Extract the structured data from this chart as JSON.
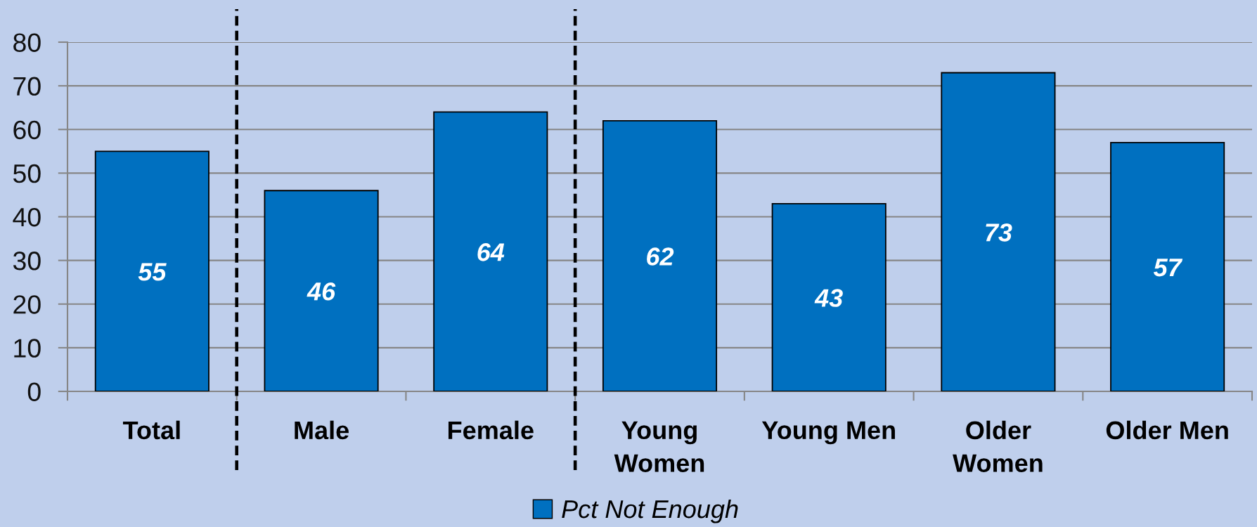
{
  "chart_data": {
    "type": "bar",
    "categories": [
      "Total",
      "Male",
      "Female",
      "Young Women",
      "Young Men",
      "Older Women",
      "Older Men"
    ],
    "series": [
      {
        "name": "Pct Not Enough",
        "color": "#0070c0",
        "values": [
          55,
          46,
          64,
          62,
          43,
          73,
          57
        ]
      }
    ],
    "ylim": [
      0,
      80
    ],
    "yticks": [
      0,
      10,
      20,
      30,
      40,
      50,
      60,
      70,
      80
    ],
    "grid": "y",
    "legend": "bottom",
    "data_labels": true
  }
}
